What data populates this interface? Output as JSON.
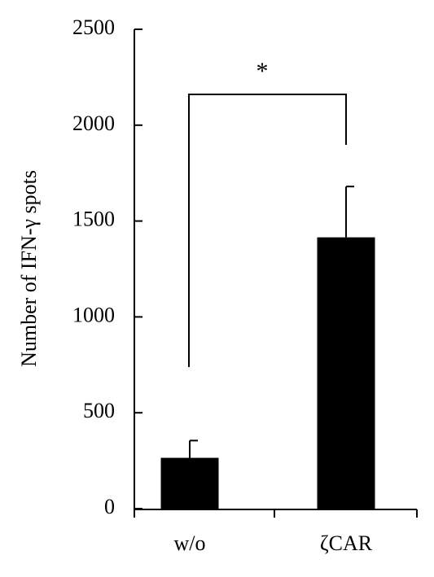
{
  "chart_data": {
    "type": "bar",
    "y_label": "Number of IFN-γ spots",
    "categories": [
      "w/o",
      "ζCAR"
    ],
    "values": [
      265,
      1415
    ],
    "errors": [
      90,
      265
    ],
    "color": "#000000",
    "ylim": [
      0,
      2500
    ],
    "yticks": [
      0,
      500,
      1000,
      1500,
      2000,
      2500
    ],
    "annotation": "*"
  }
}
